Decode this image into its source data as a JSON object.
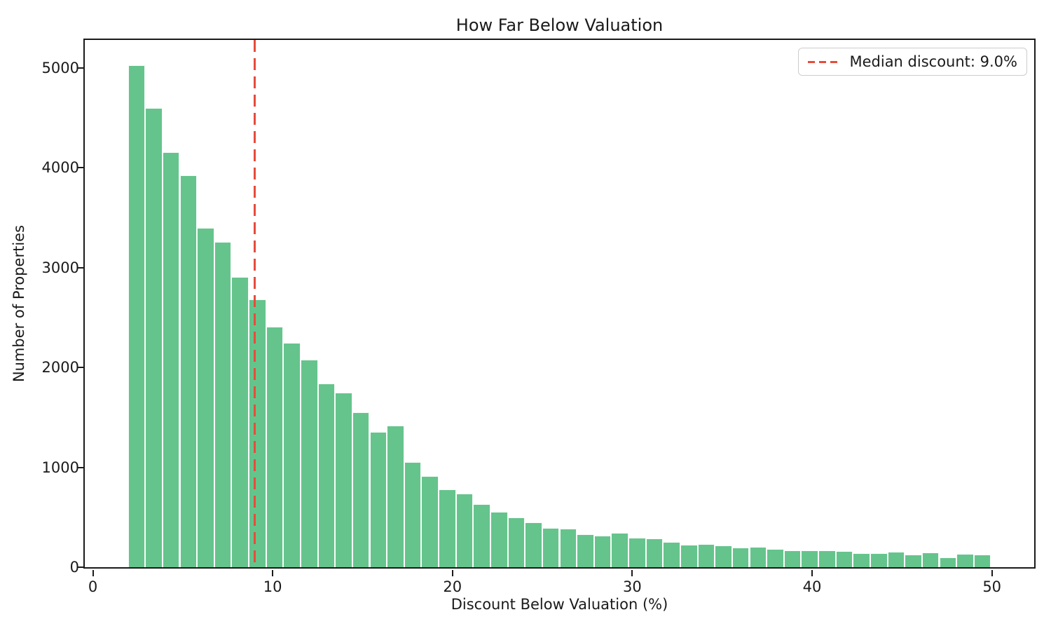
{
  "title": "How Far Below Valuation",
  "x_axis_label": "Discount Below Valuation (%)",
  "y_axis_label": "Number of Properties",
  "legend": {
    "median_label": "Median discount: 9.0%"
  },
  "colors": {
    "bar_fill": "#65c48c",
    "bar_edge": "#ffffff",
    "median_line": "#e74c3c",
    "axis": "#1a1a1a",
    "legend_border": "#cccccc"
  },
  "chart_data": {
    "type": "bar",
    "subtype": "histogram",
    "title": "How Far Below Valuation",
    "xlabel": "Discount Below Valuation (%)",
    "ylabel": "Number of Properties",
    "bin_start": 1.95,
    "bin_width": 0.96,
    "values": [
      5030,
      4600,
      4160,
      3925,
      3395,
      3260,
      2910,
      2680,
      2410,
      2245,
      2075,
      1840,
      1745,
      1555,
      1355,
      1415,
      1055,
      915,
      780,
      735,
      630,
      555,
      500,
      450,
      395,
      385,
      330,
      315,
      345,
      295,
      285,
      250,
      225,
      235,
      220,
      200,
      205,
      185,
      170,
      167,
      166,
      161,
      140,
      140,
      156,
      124,
      147,
      98,
      133,
      124
    ],
    "median_line_x": 9.0,
    "x_ticks": [
      0,
      10,
      20,
      30,
      40,
      50
    ],
    "y_ticks": [
      0,
      1000,
      2000,
      3000,
      4000,
      5000
    ],
    "xlim": [
      -0.45,
      52.35
    ],
    "ylim": [
      0,
      5280
    ],
    "grid": false,
    "legend_position": "upper right",
    "legend_entries": [
      "Median discount: 9.0%"
    ]
  }
}
